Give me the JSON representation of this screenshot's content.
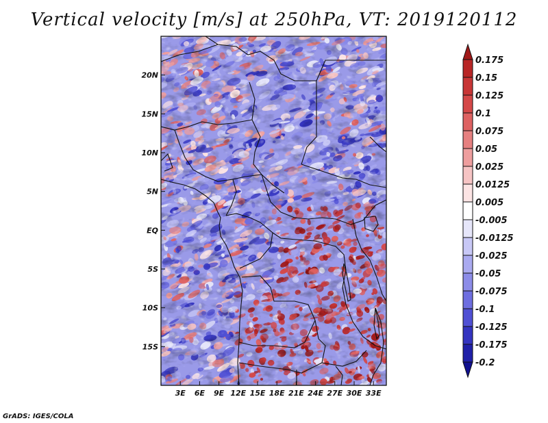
{
  "title": "Vertical velocity [m/s] at 250hPa, VT: 2019120112",
  "credit": "GrADS: IGES/COLA",
  "chart_data": {
    "type": "heatmap",
    "variable": "Vertical velocity",
    "units": "m/s",
    "level": "250hPa",
    "valid_time": "2019120112",
    "x_ticks": [
      "3E",
      "6E",
      "9E",
      "12E",
      "15E",
      "18E",
      "21E",
      "24E",
      "27E",
      "30E",
      "33E"
    ],
    "y_ticks": [
      "20N",
      "15N",
      "10N",
      "5N",
      "EQ",
      "5S",
      "10S",
      "15S"
    ],
    "xlim": [
      0,
      35
    ],
    "ylim": [
      -20,
      25
    ],
    "colorbar": {
      "labels": [
        "0.175",
        "0.15",
        "0.125",
        "0.1",
        "0.075",
        "0.05",
        "0.025",
        "0.0125",
        "0.005",
        "-0.005",
        "-0.0125",
        "-0.025",
        "-0.05",
        "-0.075",
        "-0.1",
        "-0.125",
        "-0.175",
        "-0.2"
      ],
      "colors": [
        "#a01818",
        "#b82626",
        "#c83636",
        "#d44848",
        "#de6262",
        "#e68080",
        "#ee9e9e",
        "#f6c4c4",
        "#fce4e4",
        "#ffffff",
        "#e6e6fa",
        "#c8c8f6",
        "#aaaaf0",
        "#8c8ce8",
        "#6e6ee0",
        "#5050d4",
        "#3434c0",
        "#2020a8",
        "#101090"
      ]
    }
  }
}
